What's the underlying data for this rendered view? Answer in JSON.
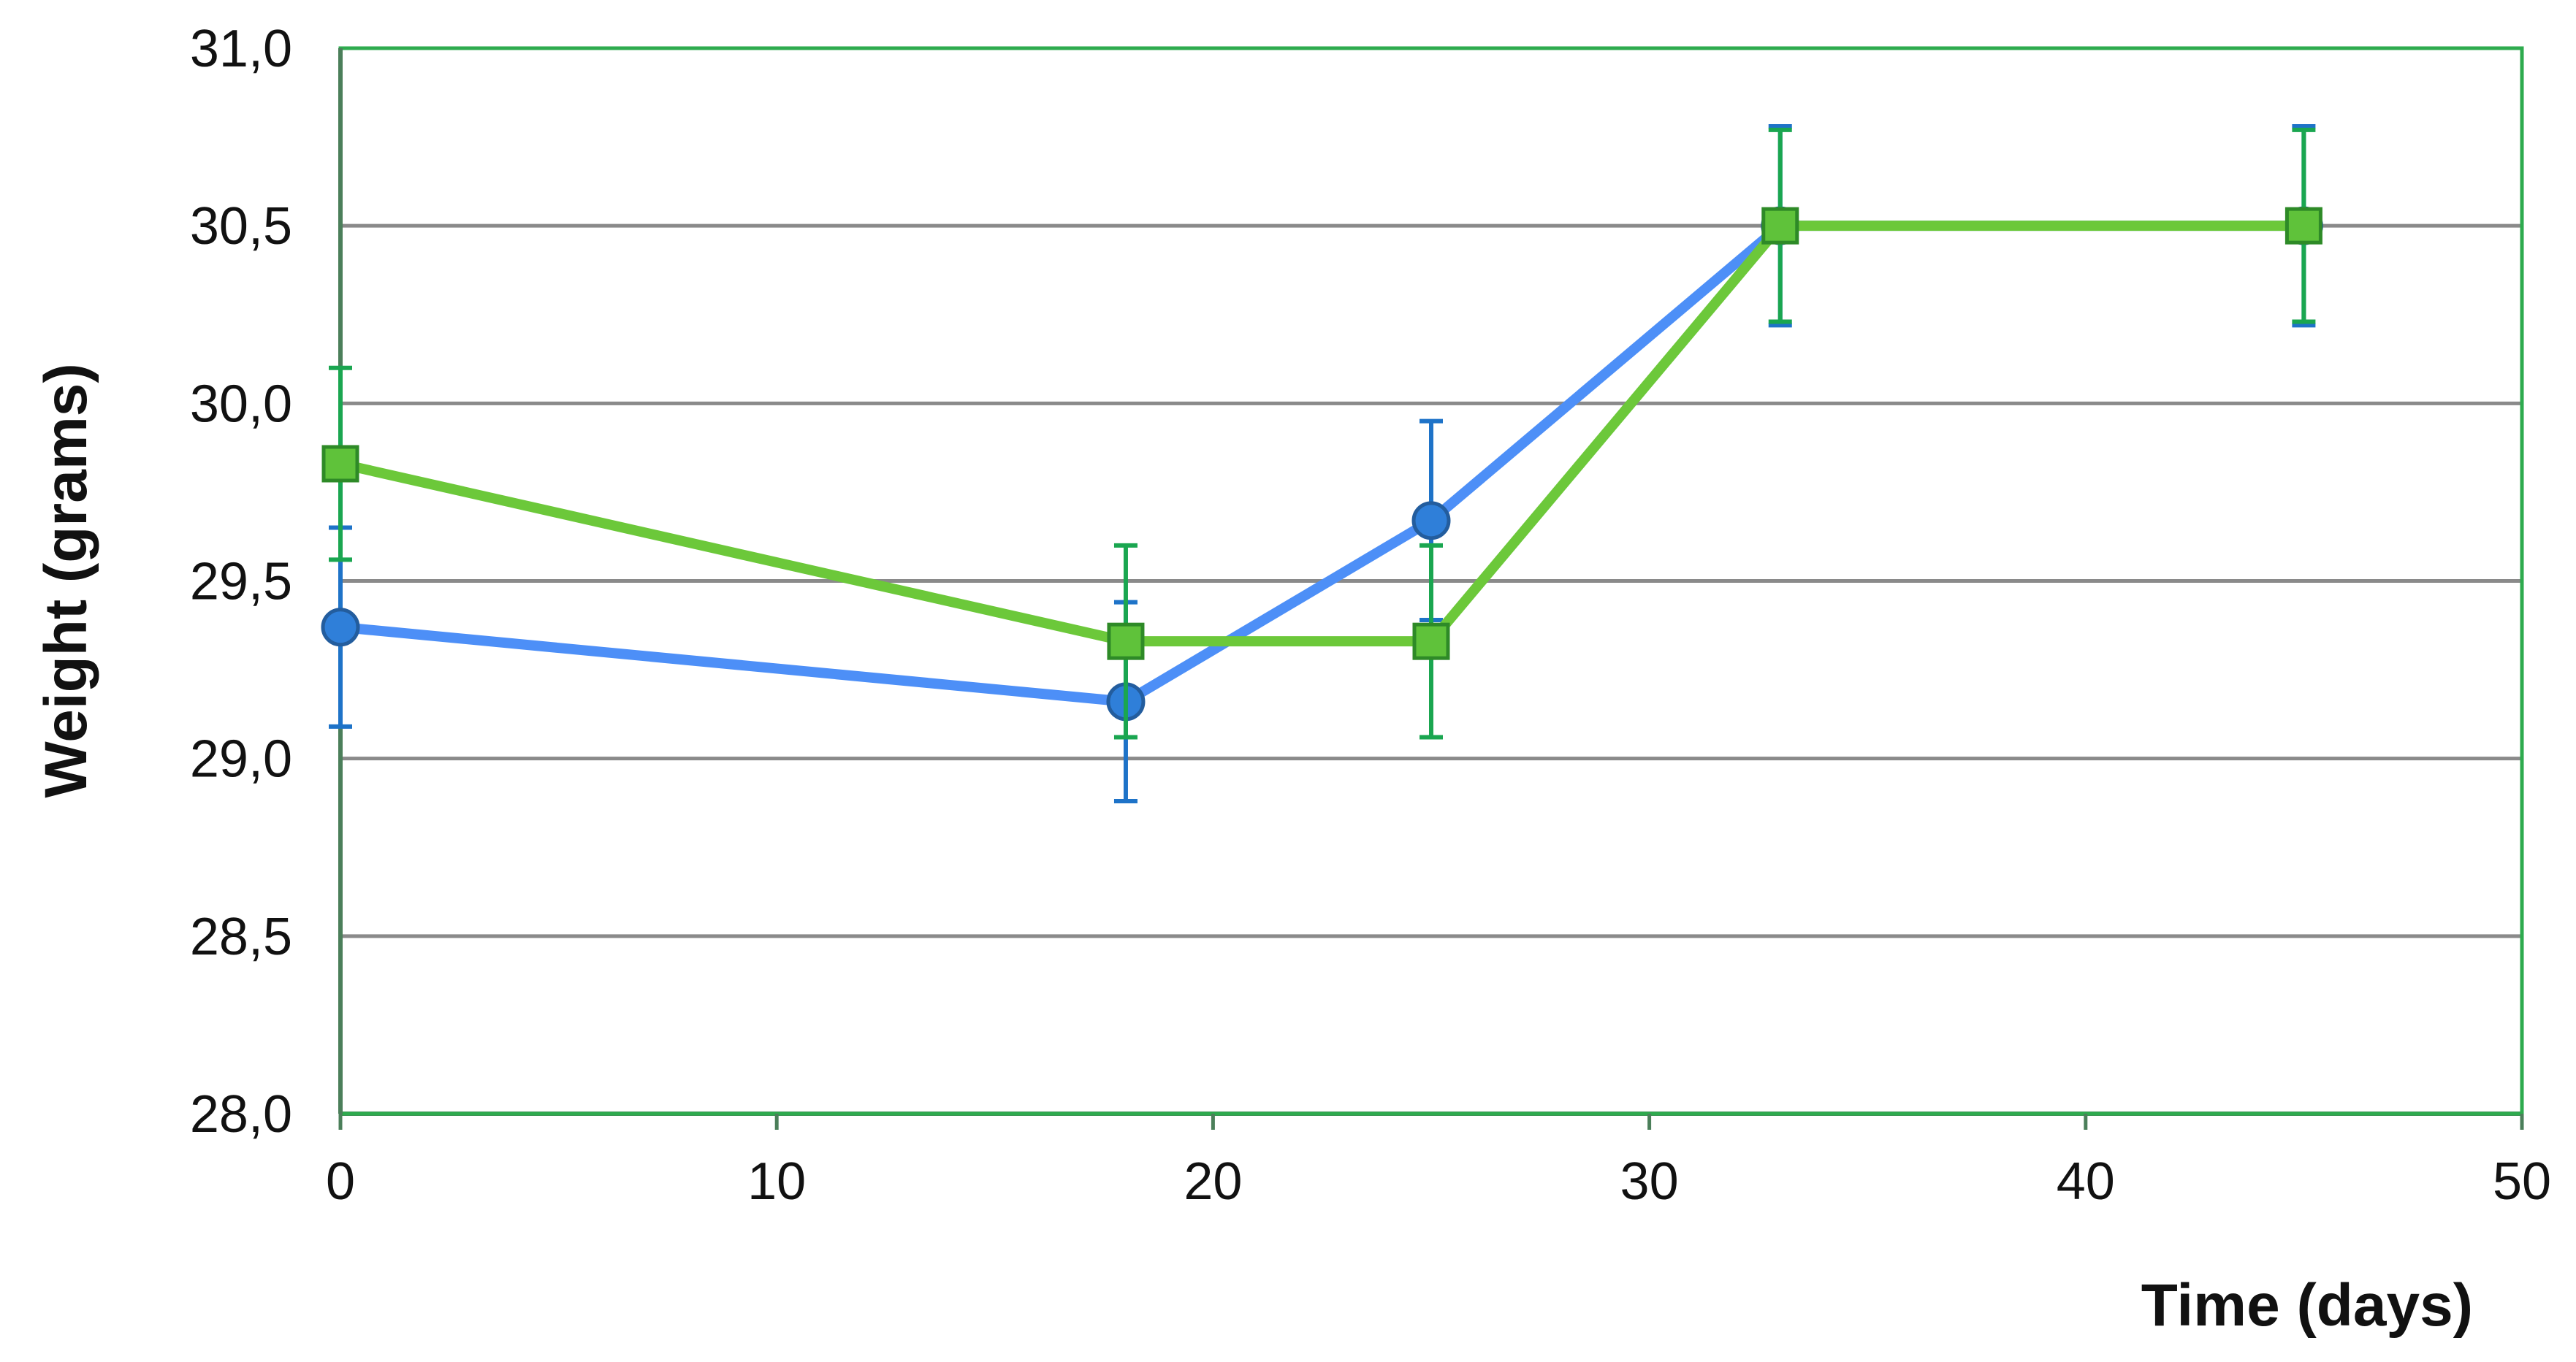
{
  "chart_data": {
    "type": "line",
    "title": "",
    "xlabel": "Time (days)",
    "ylabel": "Weight (grams)",
    "xlim": [
      0,
      50
    ],
    "ylim": [
      28.0,
      31.0
    ],
    "x_ticks": [
      0,
      10,
      20,
      30,
      40,
      50
    ],
    "x_tick_labels": [
      "0",
      "10",
      "20",
      "30",
      "40",
      "50"
    ],
    "y_ticks": [
      28.0,
      28.5,
      29.0,
      29.5,
      30.0,
      30.5,
      31.0
    ],
    "y_tick_labels": [
      "28,0",
      "28,5",
      "29,0",
      "29,5",
      "30,0",
      "30,5",
      "31,0"
    ],
    "grid": "horizontal",
    "legend": "none",
    "series": [
      {
        "color": "#4d8ff7",
        "marker": "circle",
        "points": [
          {
            "x": 0,
            "y": 29.37,
            "err": 0.28
          },
          {
            "x": 18,
            "y": 29.16,
            "err": 0.28
          },
          {
            "x": 25,
            "y": 29.67,
            "err": 0.28
          },
          {
            "x": 33,
            "y": 30.5,
            "err": 0.28
          },
          {
            "x": 45,
            "y": 30.5,
            "err": 0.28
          }
        ]
      },
      {
        "color": "#6cc83a",
        "marker": "square",
        "points": [
          {
            "x": 0,
            "y": 29.83,
            "err": 0.27
          },
          {
            "x": 18,
            "y": 29.33,
            "err": 0.27
          },
          {
            "x": 25,
            "y": 29.33,
            "err": 0.27
          },
          {
            "x": 33,
            "y": 30.5,
            "err": 0.27
          },
          {
            "x": 45,
            "y": 30.5,
            "err": 0.27
          }
        ]
      }
    ]
  }
}
